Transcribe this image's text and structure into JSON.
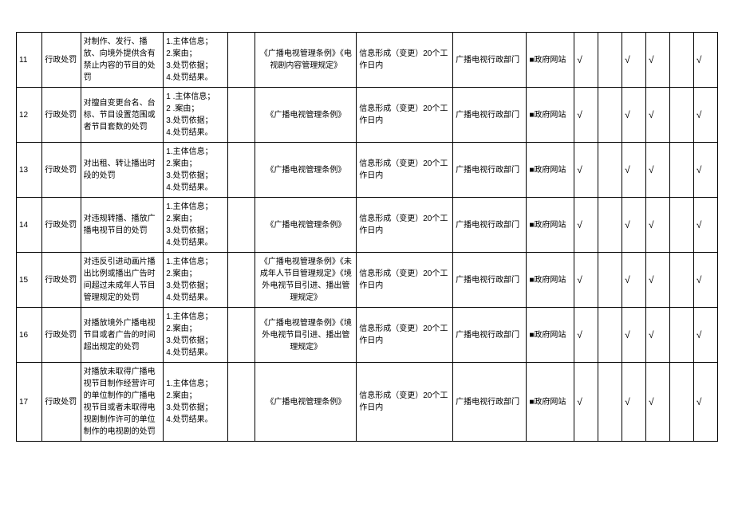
{
  "rows": [
    {
      "num": "11",
      "type": "行政处罚",
      "matter": "对制作、发行、播放、向境外提供含有禁止内容的节目的处罚",
      "content": "1.主体信息；\n2.案由；\n3.处罚依据；\n4.处罚结果。",
      "basis": "《广播电视管理条例》《电视剧内容管理规定》",
      "time": "信息形成（变更）20个工作日内",
      "subject": "广播电视行政部门",
      "method": "■政府网站",
      "c1": "√",
      "c2": "",
      "c3": "√",
      "c4": "√",
      "c5": "",
      "c6": "√"
    },
    {
      "num": "12",
      "type": "行政处罚",
      "matter": "对擅自变更台名、台标、节目设置范围或者节目套数的处罚",
      "content": "1    .主体信息；\n2    .案由；\n3.处罚依据；\n4.处罚结果。",
      "basis": "《广播电视管理条例》",
      "time": "信息形成（变更）20个工作日内",
      "subject": "广播电视行政部门",
      "method": "■政府网站",
      "c1": "√",
      "c2": "",
      "c3": "√",
      "c4": "√",
      "c5": "",
      "c6": "√"
    },
    {
      "num": "13",
      "type": "行政处罚",
      "matter": "对出租、转让播出时段的处罚",
      "content": "1.主体信息；\n2.案由；\n3.处罚依据；\n4.处罚结果。",
      "basis": "《广播电视管理条例》",
      "time": "信息形成（变更）20个工作日内",
      "subject": "广播电视行政部门",
      "method": "■政府网站",
      "c1": "√",
      "c2": "",
      "c3": "√",
      "c4": "√",
      "c5": "",
      "c6": "√"
    },
    {
      "num": "14",
      "type": "行政处罚",
      "matter": "对违规转播、播放广播电视节目的处罚",
      "content": "1.主体信息；\n2.案由；\n3.处罚依据；\n4.处罚结果。",
      "basis": "《广播电视管理条例》",
      "time": "信息形成（变更）20个工作日内",
      "subject": "广播电视行政部门",
      "method": "■政府网站",
      "c1": "√",
      "c2": "",
      "c3": "√",
      "c4": "√",
      "c5": "",
      "c6": "√"
    },
    {
      "num": "15",
      "type": "行政处罚",
      "matter": "对违反引进动画片播出比例或播出广告时间超过未成年人节目管理规定的处罚",
      "content": "1.主体信息；\n2.案由；\n3.处罚依据；\n4.处罚结果。",
      "basis": "《广播电视管理条例》《未成年人节目管理规定》《境外电视节目引进、播出管理规定》",
      "time": "信息形成（变更）20个工作日内",
      "subject": "广播电视行政部门",
      "method": "■政府网站",
      "c1": "√",
      "c2": "",
      "c3": "√",
      "c4": "√",
      "c5": "",
      "c6": "√"
    },
    {
      "num": "16",
      "type": "行政处罚",
      "matter": "对播放境外广播电视节目或者广告的时间超出规定的处罚",
      "content": "1.主体信息；\n2.案由；\n3.处罚依据；\n4.处罚结果。",
      "basis": "《广播电视管理条例》《境外电视节目引进、播出管理规定》",
      "time": "信息形成（变更）20个工作日内",
      "subject": "广播电视行政部门",
      "method": "■政府网站",
      "c1": "√",
      "c2": "",
      "c3": "√",
      "c4": "√",
      "c5": "",
      "c6": "√"
    },
    {
      "num": "17",
      "type": "行政处罚",
      "matter": "对播放未取得广播电视节目制作经营许可的单位制作的广播电视节目或者未取得电视剧制作许可的单位制作的电视剧的处罚",
      "content": "1.主体信息；\n2.案由；\n3.处罚依据；\n4.处罚结果。",
      "basis": "《广播电视管理条例》",
      "time": "信息形成（变更）20个工作日内",
      "subject": "广播电视行政部门",
      "method": "■政府网站",
      "c1": "√",
      "c2": "",
      "c3": "√",
      "c4": "√",
      "c5": "",
      "c6": "√"
    }
  ]
}
